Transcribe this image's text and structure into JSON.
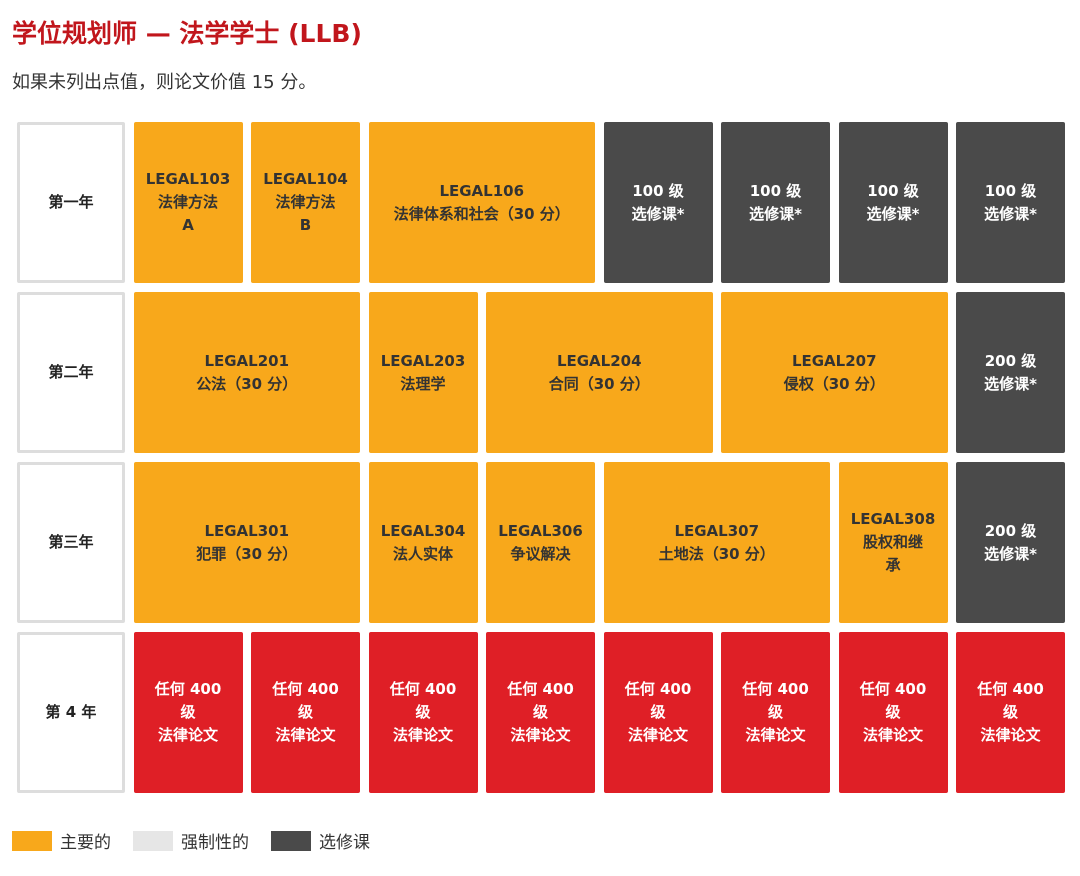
{
  "header": {
    "title": "学位规划师 — 法学学士 (LLB)",
    "subtitle": "如果未列出点值，则论文价值 15 分。"
  },
  "rows": [
    {
      "year": "第一年",
      "cells": [
        [
          "LEGAL103",
          "法律方法",
          "A"
        ],
        [
          "LEGAL104",
          "法律方法",
          "B"
        ],
        [
          "LEGAL106",
          "法律体系和社会（30 分）"
        ],
        [
          "100 级",
          "选修课*"
        ],
        [
          "100 级",
          "选修课*"
        ],
        [
          "100 级",
          "选修课*"
        ],
        [
          "100 级",
          "选修课*"
        ]
      ]
    },
    {
      "year": "第二年",
      "cells": [
        [
          "LEGAL201",
          "公法（30 分）"
        ],
        [
          "LEGAL203",
          "法理学"
        ],
        [
          "LEGAL204",
          "合同（30 分）"
        ],
        [
          "LEGAL207",
          "侵权（30 分）"
        ],
        [
          "200 级",
          "选修课*"
        ]
      ]
    },
    {
      "year": "第三年",
      "cells": [
        [
          "LEGAL301",
          "犯罪（30 分）"
        ],
        [
          "LEGAL304",
          "法人实体"
        ],
        [
          "LEGAL306",
          "争议解决"
        ],
        [
          "LEGAL307",
          "土地法（30 分）"
        ],
        [
          "LEGAL308",
          "股权和继",
          "承"
        ],
        [
          "200 级",
          "选修课*"
        ]
      ]
    },
    {
      "year": "第 4 年",
      "cells": [
        [
          "任何 400",
          "级",
          "法律论文"
        ],
        [
          "任何 400",
          "级",
          "法律论文"
        ],
        [
          "任何 400",
          "级",
          "法律论文"
        ],
        [
          "任何 400",
          "级",
          "法律论文"
        ],
        [
          "任何 400",
          "级",
          "法律论文"
        ],
        [
          "任何 400",
          "级",
          "法律论文"
        ],
        [
          "任何 400",
          "级",
          "法律论文"
        ],
        [
          "任何 400",
          "级",
          "法律论文"
        ]
      ]
    }
  ],
  "legend": [
    "主要的",
    "强制性的",
    "选修课"
  ]
}
